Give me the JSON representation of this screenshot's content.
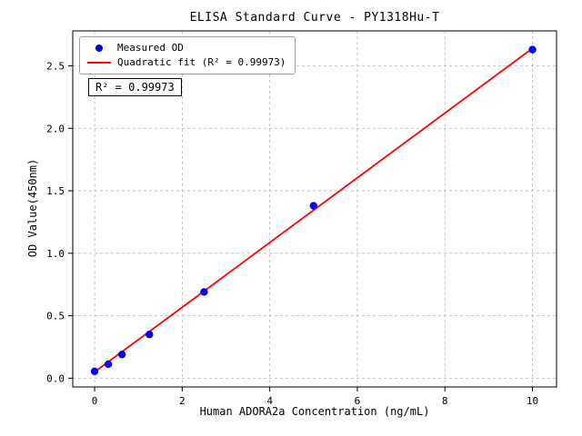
{
  "chart_data": {
    "type": "scatter",
    "title": "ELISA Standard Curve - PY1318Hu-T",
    "xlabel": "Human ADORA2a Concentration (ng/mL)",
    "ylabel": "OD Value(450nm)",
    "xlim": [
      -0.5,
      10.55
    ],
    "ylim": [
      -0.07,
      2.78
    ],
    "x_ticks": [
      0,
      2,
      4,
      6,
      8,
      10
    ],
    "y_ticks": [
      0.0,
      0.5,
      1.0,
      1.5,
      2.0,
      2.5
    ],
    "grid": true,
    "grid_color": "#b8b8b8",
    "legend_position": "upper-left",
    "annotation": "R² = 0.99973",
    "series": [
      {
        "name": "Measured OD",
        "type": "scatter",
        "color": "#0000ee",
        "x": [
          0,
          0.3125,
          0.625,
          1.25,
          2.5,
          5,
          10
        ],
        "y": [
          0.055,
          0.112,
          0.19,
          0.35,
          0.69,
          1.38,
          2.63
        ]
      },
      {
        "name": "Quadratic fit (R² = 0.99973)",
        "type": "line",
        "color": "#ff0000",
        "x": [
          0,
          10
        ],
        "y": [
          0.05,
          2.64
        ]
      }
    ]
  }
}
